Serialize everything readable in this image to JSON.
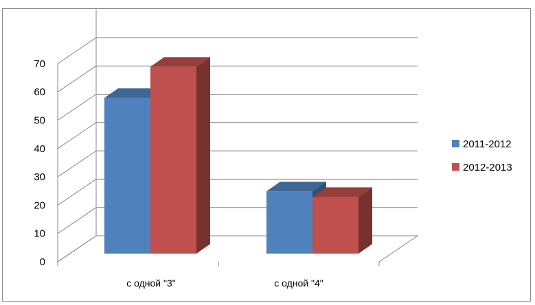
{
  "chart_data": {
    "type": "bar",
    "style": "3d-clustered-column",
    "categories": [
      "с одной \"3\"",
      "с одной \"4\""
    ],
    "series": [
      {
        "name": "2011-2012",
        "values": [
          55,
          22
        ],
        "color": "#4f81bd"
      },
      {
        "name": "2012-2013",
        "values": [
          66,
          20
        ],
        "color": "#c0504d"
      }
    ],
    "yticks": [
      0,
      10,
      20,
      30,
      40,
      50,
      60,
      70
    ],
    "ylim": [
      0,
      80
    ],
    "grid": true,
    "legend_position": "right",
    "title": "",
    "xlabel": "",
    "ylabel": ""
  }
}
